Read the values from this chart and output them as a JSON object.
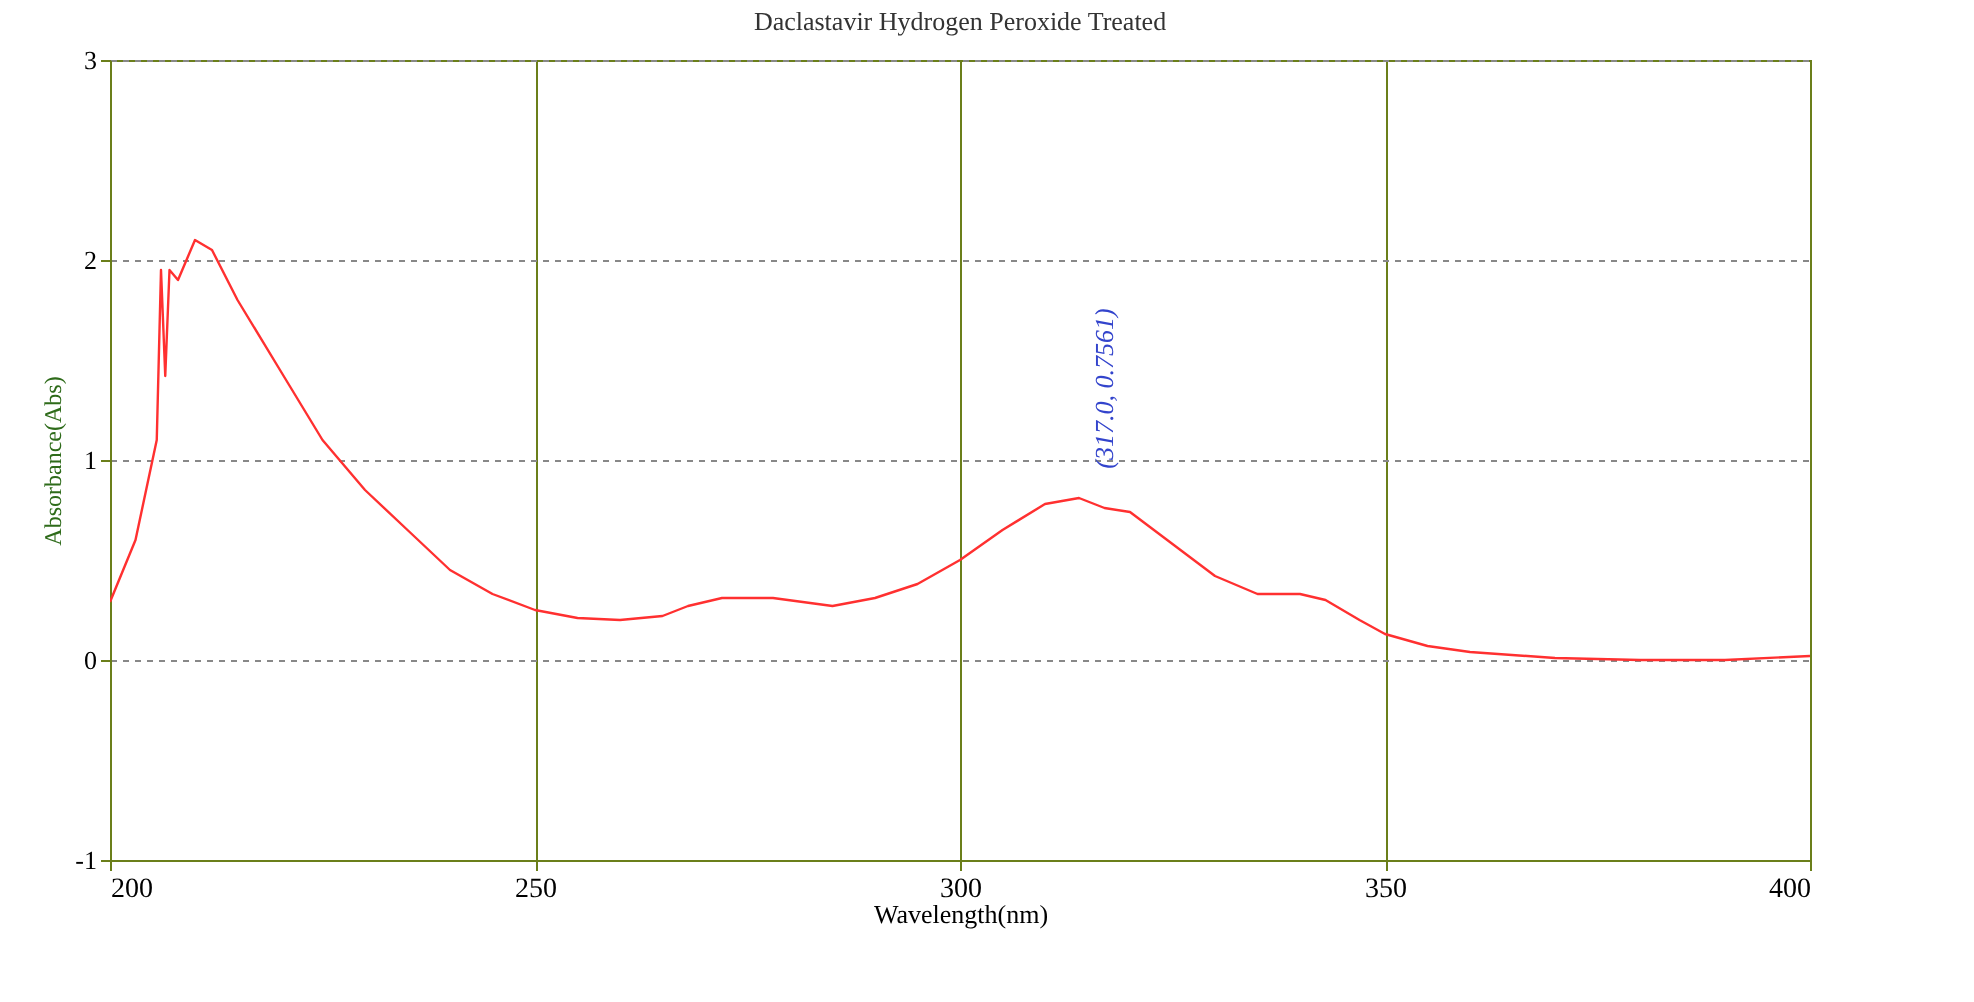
{
  "chart_data": {
    "type": "line",
    "title": "Daclastavir Hydrogen Peroxide Treated",
    "xlabel": "Wavelength(nm)",
    "ylabel": "Absorbance(Abs)",
    "xlim": [
      200,
      400
    ],
    "xticks": [
      200,
      250,
      300,
      350,
      400
    ],
    "ylim": [
      -1,
      3
    ],
    "yticks": [
      -1,
      0,
      1,
      2,
      3
    ],
    "grid": true,
    "annotations": [
      {
        "text": "(317.0, 0.7561)",
        "x": 317,
        "y": 0.7561
      }
    ],
    "series": [
      {
        "color": "#ff3030",
        "x": [
          200,
          203,
          205.5,
          206,
          206.5,
          207,
          208,
          209,
          210,
          212,
          215,
          220,
          225,
          230,
          235,
          240,
          245,
          250,
          255,
          260,
          265,
          268,
          272,
          278,
          285,
          290,
          295,
          300,
          305,
          310,
          314,
          317,
          320,
          325,
          330,
          335,
          340,
          343,
          347,
          350,
          355,
          360,
          370,
          380,
          390,
          400
        ],
        "values": [
          0.29,
          0.6,
          1.1,
          1.95,
          1.42,
          1.95,
          1.9,
          2.0,
          2.1,
          2.05,
          1.8,
          1.45,
          1.1,
          0.85,
          0.65,
          0.45,
          0.33,
          0.25,
          0.21,
          0.2,
          0.22,
          0.27,
          0.31,
          0.31,
          0.27,
          0.31,
          0.38,
          0.5,
          0.65,
          0.78,
          0.81,
          0.76,
          0.74,
          0.58,
          0.42,
          0.33,
          0.33,
          0.3,
          0.2,
          0.13,
          0.07,
          0.04,
          0.01,
          0.0,
          0.0,
          0.02
        ]
      }
    ]
  }
}
